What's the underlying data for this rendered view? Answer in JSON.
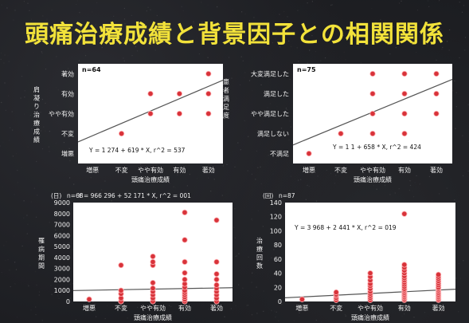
{
  "title": "頭痛治療成績と背景因子との相関関係",
  "colors": {
    "background": "#1c1d21",
    "title": "#f2e23a",
    "plot_bg": "#ffffff",
    "point": "#d8333a",
    "line": "#ffffff"
  },
  "chart_data": [
    {
      "type": "scatter",
      "n_label": "n=64",
      "ylabel": "肩凝り治療成績",
      "xlabel": "頭痛治療成績",
      "categories_x": [
        "増悪",
        "不変",
        "やや有効",
        "有効",
        "著効"
      ],
      "categories_y": [
        "増悪",
        "不変",
        "やや有効",
        "有効",
        "著効"
      ],
      "xlim": [
        0.5,
        5.5
      ],
      "ylim": [
        0.5,
        5.5
      ],
      "points": [
        [
          2,
          2
        ],
        [
          3,
          3
        ],
        [
          4,
          3
        ],
        [
          3,
          4
        ],
        [
          4,
          4
        ],
        [
          5,
          4
        ],
        [
          5,
          3
        ],
        [
          5,
          5
        ]
      ],
      "regression": {
        "intercept": 1.274,
        "slope": 0.619,
        "label": "Y = 1 274 + 619 * X, r^2 = 537"
      },
      "grid": false
    },
    {
      "type": "scatter",
      "n_label": "n=75",
      "ylabel": "患者満足度",
      "xlabel": "頭痛治療成績",
      "categories_x": [
        "増悪",
        "不変",
        "やや有効",
        "有効",
        "著効"
      ],
      "categories_y": [
        "不満足",
        "満足しない",
        "やや満足した",
        "満足した",
        "大変満足した"
      ],
      "xlim": [
        0.5,
        5.5
      ],
      "ylim": [
        0.5,
        5.5
      ],
      "points": [
        [
          1,
          1
        ],
        [
          2,
          2
        ],
        [
          3,
          2
        ],
        [
          4,
          2
        ],
        [
          3,
          3
        ],
        [
          4,
          3
        ],
        [
          5,
          3
        ],
        [
          3,
          4
        ],
        [
          4,
          4
        ],
        [
          5,
          4
        ],
        [
          3,
          5
        ],
        [
          4,
          5
        ],
        [
          5,
          5
        ]
      ],
      "regression": {
        "intercept": 1.1,
        "slope": 0.658,
        "label": "Y = 1 1 + 658 * X, r^2 = 424"
      },
      "grid": false
    },
    {
      "type": "scatter",
      "panel_label": "(日)",
      "n_label": "n=68",
      "ylabel": "罹病期間",
      "xlabel": "頭痛治療成績",
      "categories_x": [
        "増悪",
        "不変",
        "やや有効",
        "有効",
        "著効"
      ],
      "yticks": [
        0,
        1000,
        2000,
        3000,
        4000,
        5000,
        6000,
        7000,
        8000,
        9000
      ],
      "ylim": [
        0,
        9000
      ],
      "points": [
        [
          1,
          200
        ],
        [
          2,
          0
        ],
        [
          2,
          300
        ],
        [
          2,
          700
        ],
        [
          2,
          1000
        ],
        [
          2,
          3300
        ],
        [
          3,
          0
        ],
        [
          3,
          300
        ],
        [
          3,
          600
        ],
        [
          3,
          900
        ],
        [
          3,
          1200
        ],
        [
          3,
          1700
        ],
        [
          3,
          3300
        ],
        [
          3,
          3600
        ],
        [
          3,
          4100
        ],
        [
          4,
          0
        ],
        [
          4,
          200
        ],
        [
          4,
          400
        ],
        [
          4,
          600
        ],
        [
          4,
          800
        ],
        [
          4,
          1000
        ],
        [
          4,
          1300
        ],
        [
          4,
          1600
        ],
        [
          4,
          2000
        ],
        [
          4,
          2600
        ],
        [
          4,
          3600
        ],
        [
          4,
          5600
        ],
        [
          4,
          8100
        ],
        [
          5,
          0
        ],
        [
          5,
          300
        ],
        [
          5,
          600
        ],
        [
          5,
          900
        ],
        [
          5,
          1200
        ],
        [
          5,
          1500
        ],
        [
          5,
          2000
        ],
        [
          5,
          2500
        ],
        [
          5,
          3600
        ],
        [
          5,
          7400
        ]
      ],
      "regression": {
        "intercept": 966.296,
        "slope": 52.171,
        "label": "Y = 966 296 + 52 171 * X, r^2 = 001"
      },
      "grid": false
    },
    {
      "type": "scatter",
      "panel_label": "(回)",
      "n_label": "n=87",
      "ylabel": "治療回数",
      "xlabel": "頭痛治療成績",
      "categories_x": [
        "増悪",
        "不変",
        "やや有効",
        "有効",
        "著効"
      ],
      "yticks": [
        0,
        20,
        40,
        60,
        80,
        100,
        120,
        140
      ],
      "ylim": [
        0,
        140
      ],
      "points": [
        [
          1,
          3
        ],
        [
          2,
          2
        ],
        [
          2,
          5
        ],
        [
          2,
          8
        ],
        [
          2,
          10
        ],
        [
          2,
          13
        ],
        [
          3,
          2
        ],
        [
          3,
          5
        ],
        [
          3,
          8
        ],
        [
          3,
          11
        ],
        [
          3,
          14
        ],
        [
          3,
          18
        ],
        [
          3,
          22
        ],
        [
          3,
          25
        ],
        [
          3,
          30
        ],
        [
          3,
          35
        ],
        [
          3,
          40
        ],
        [
          4,
          2
        ],
        [
          4,
          4
        ],
        [
          4,
          6
        ],
        [
          4,
          8
        ],
        [
          4,
          10
        ],
        [
          4,
          12
        ],
        [
          4,
          14
        ],
        [
          4,
          16
        ],
        [
          4,
          18
        ],
        [
          4,
          21
        ],
        [
          4,
          24
        ],
        [
          4,
          27
        ],
        [
          4,
          30
        ],
        [
          4,
          33
        ],
        [
          4,
          36
        ],
        [
          4,
          40
        ],
        [
          4,
          44
        ],
        [
          4,
          48
        ],
        [
          4,
          52
        ],
        [
          4,
          124
        ],
        [
          5,
          2
        ],
        [
          5,
          4
        ],
        [
          5,
          6
        ],
        [
          5,
          8
        ],
        [
          5,
          10
        ],
        [
          5,
          12
        ],
        [
          5,
          14
        ],
        [
          5,
          16
        ],
        [
          5,
          18
        ],
        [
          5,
          20
        ],
        [
          5,
          23
        ],
        [
          5,
          26
        ],
        [
          5,
          29
        ],
        [
          5,
          32
        ],
        [
          5,
          35
        ],
        [
          5,
          38
        ]
      ],
      "regression": {
        "intercept": 3.968,
        "slope": 2.441,
        "label": "Y = 3 968 + 2 441 * X, r^2 = 019"
      },
      "grid": false
    }
  ]
}
